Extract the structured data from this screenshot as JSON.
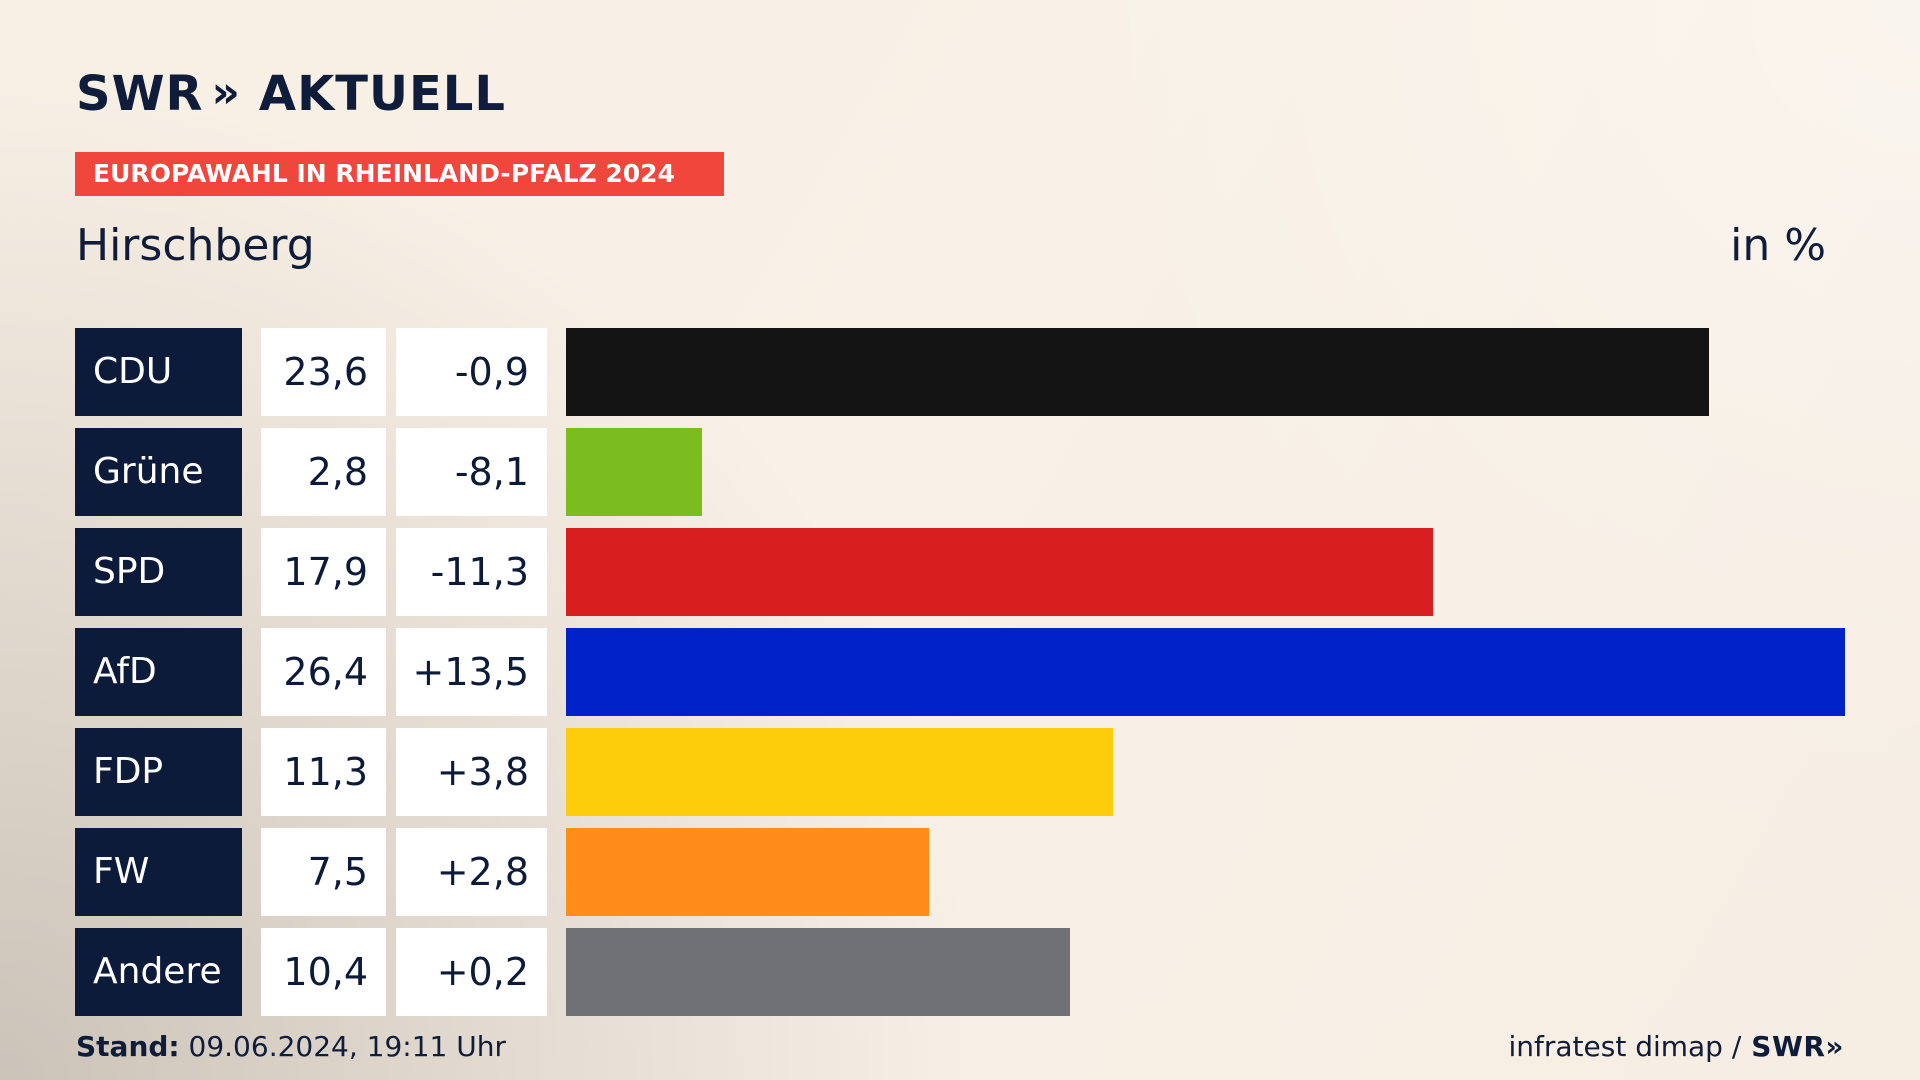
{
  "brand": {
    "logo_left": "SWR",
    "logo_chevrons": "»",
    "logo_right": "AKTUELL"
  },
  "ribbon": {
    "label": "EUROPAWAHL IN RHEINLAND-PFALZ 2024"
  },
  "header": {
    "region": "Hirschberg",
    "unit": "in %"
  },
  "footer": {
    "stand_label": "Stand:",
    "stand_value": "09.06.2024, 19:11 Uhr",
    "source": "infratest dimap /",
    "source_brand": "SWR»"
  },
  "chart_data": {
    "type": "bar",
    "orientation": "horizontal",
    "title": "",
    "xlabel": "",
    "ylabel": "",
    "xlim": [
      0,
      26.4
    ],
    "categories": [
      "CDU",
      "Grüne",
      "SPD",
      "AfD",
      "FDP",
      "FW",
      "Andere"
    ],
    "values": [
      23.6,
      2.8,
      17.9,
      26.4,
      11.3,
      7.5,
      10.4
    ],
    "value_labels": [
      "23,6",
      "2,8",
      "17,9",
      "26,4",
      "11,3",
      "7,5",
      "10,4"
    ],
    "diff_labels": [
      "-0,9",
      "-8,1",
      "-11,3",
      "+13,5",
      "+3,8",
      "+2,8",
      "+0,2"
    ],
    "colors": [
      "#141414",
      "#7bbd1e",
      "#d71f1f",
      "#0022c8",
      "#fdcc0a",
      "#ff8d18",
      "#707174"
    ]
  }
}
